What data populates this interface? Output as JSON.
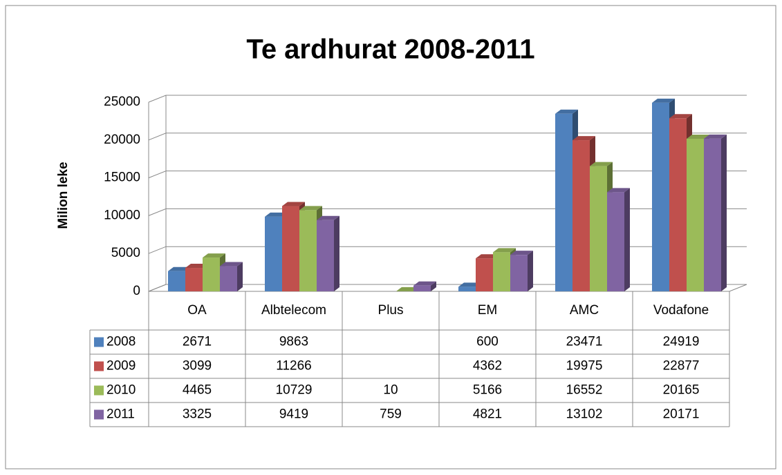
{
  "chart_data": {
    "type": "bar3d",
    "title": "Te ardhurat 2008-2011",
    "y_label": "Milion leke",
    "categories": [
      "OA",
      "Albtelecom",
      "Plus",
      "EM",
      "AMC",
      "Vodafone"
    ],
    "series": [
      {
        "name": "2008",
        "color": "#4f81bd",
        "values": [
          2671,
          9863,
          null,
          600,
          23471,
          24919
        ]
      },
      {
        "name": "2009",
        "color": "#c0504d",
        "values": [
          3099,
          11266,
          null,
          4362,
          19975,
          22877
        ]
      },
      {
        "name": "2010",
        "color": "#9bbb59",
        "values": [
          4465,
          10729,
          10,
          5166,
          16552,
          20165
        ]
      },
      {
        "name": "2011",
        "color": "#8064a2",
        "values": [
          3325,
          9419,
          759,
          4821,
          13102,
          20171
        ]
      }
    ],
    "ylim": [
      0,
      25000
    ],
    "yticks": [
      0,
      5000,
      10000,
      15000,
      20000,
      25000
    ],
    "grid": true,
    "data_table": true
  }
}
